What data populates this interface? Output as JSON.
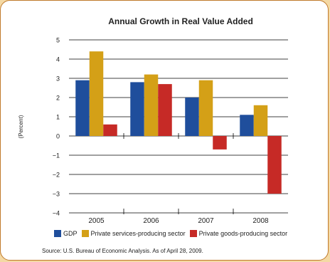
{
  "chart_data": {
    "type": "bar",
    "title": "Annual Growth in Real Value Added",
    "ylabel": "(Percent)",
    "xlabel": "",
    "categories": [
      "2005",
      "2006",
      "2007",
      "2008"
    ],
    "ylim": [
      -4,
      5
    ],
    "yticks": [
      "5",
      "4",
      "3",
      "2",
      "1",
      "0",
      "−1",
      "−2",
      "−3",
      "−4"
    ],
    "series": [
      {
        "name": "GDP",
        "values": [
          2.9,
          2.8,
          2.0,
          1.1
        ],
        "color": "#1f4e9c"
      },
      {
        "name": "Private services-producing sector",
        "values": [
          4.4,
          3.2,
          2.9,
          1.6
        ],
        "color": "#d4a017"
      },
      {
        "name": "Private goods-producing sector",
        "values": [
          0.6,
          2.7,
          -0.7,
          -3.0
        ],
        "color": "#c62a26"
      }
    ],
    "grid": true,
    "legend_position": "bottom"
  },
  "source": "Source: U.S. Bureau of Economic Analysis. As of April 28, 2009."
}
